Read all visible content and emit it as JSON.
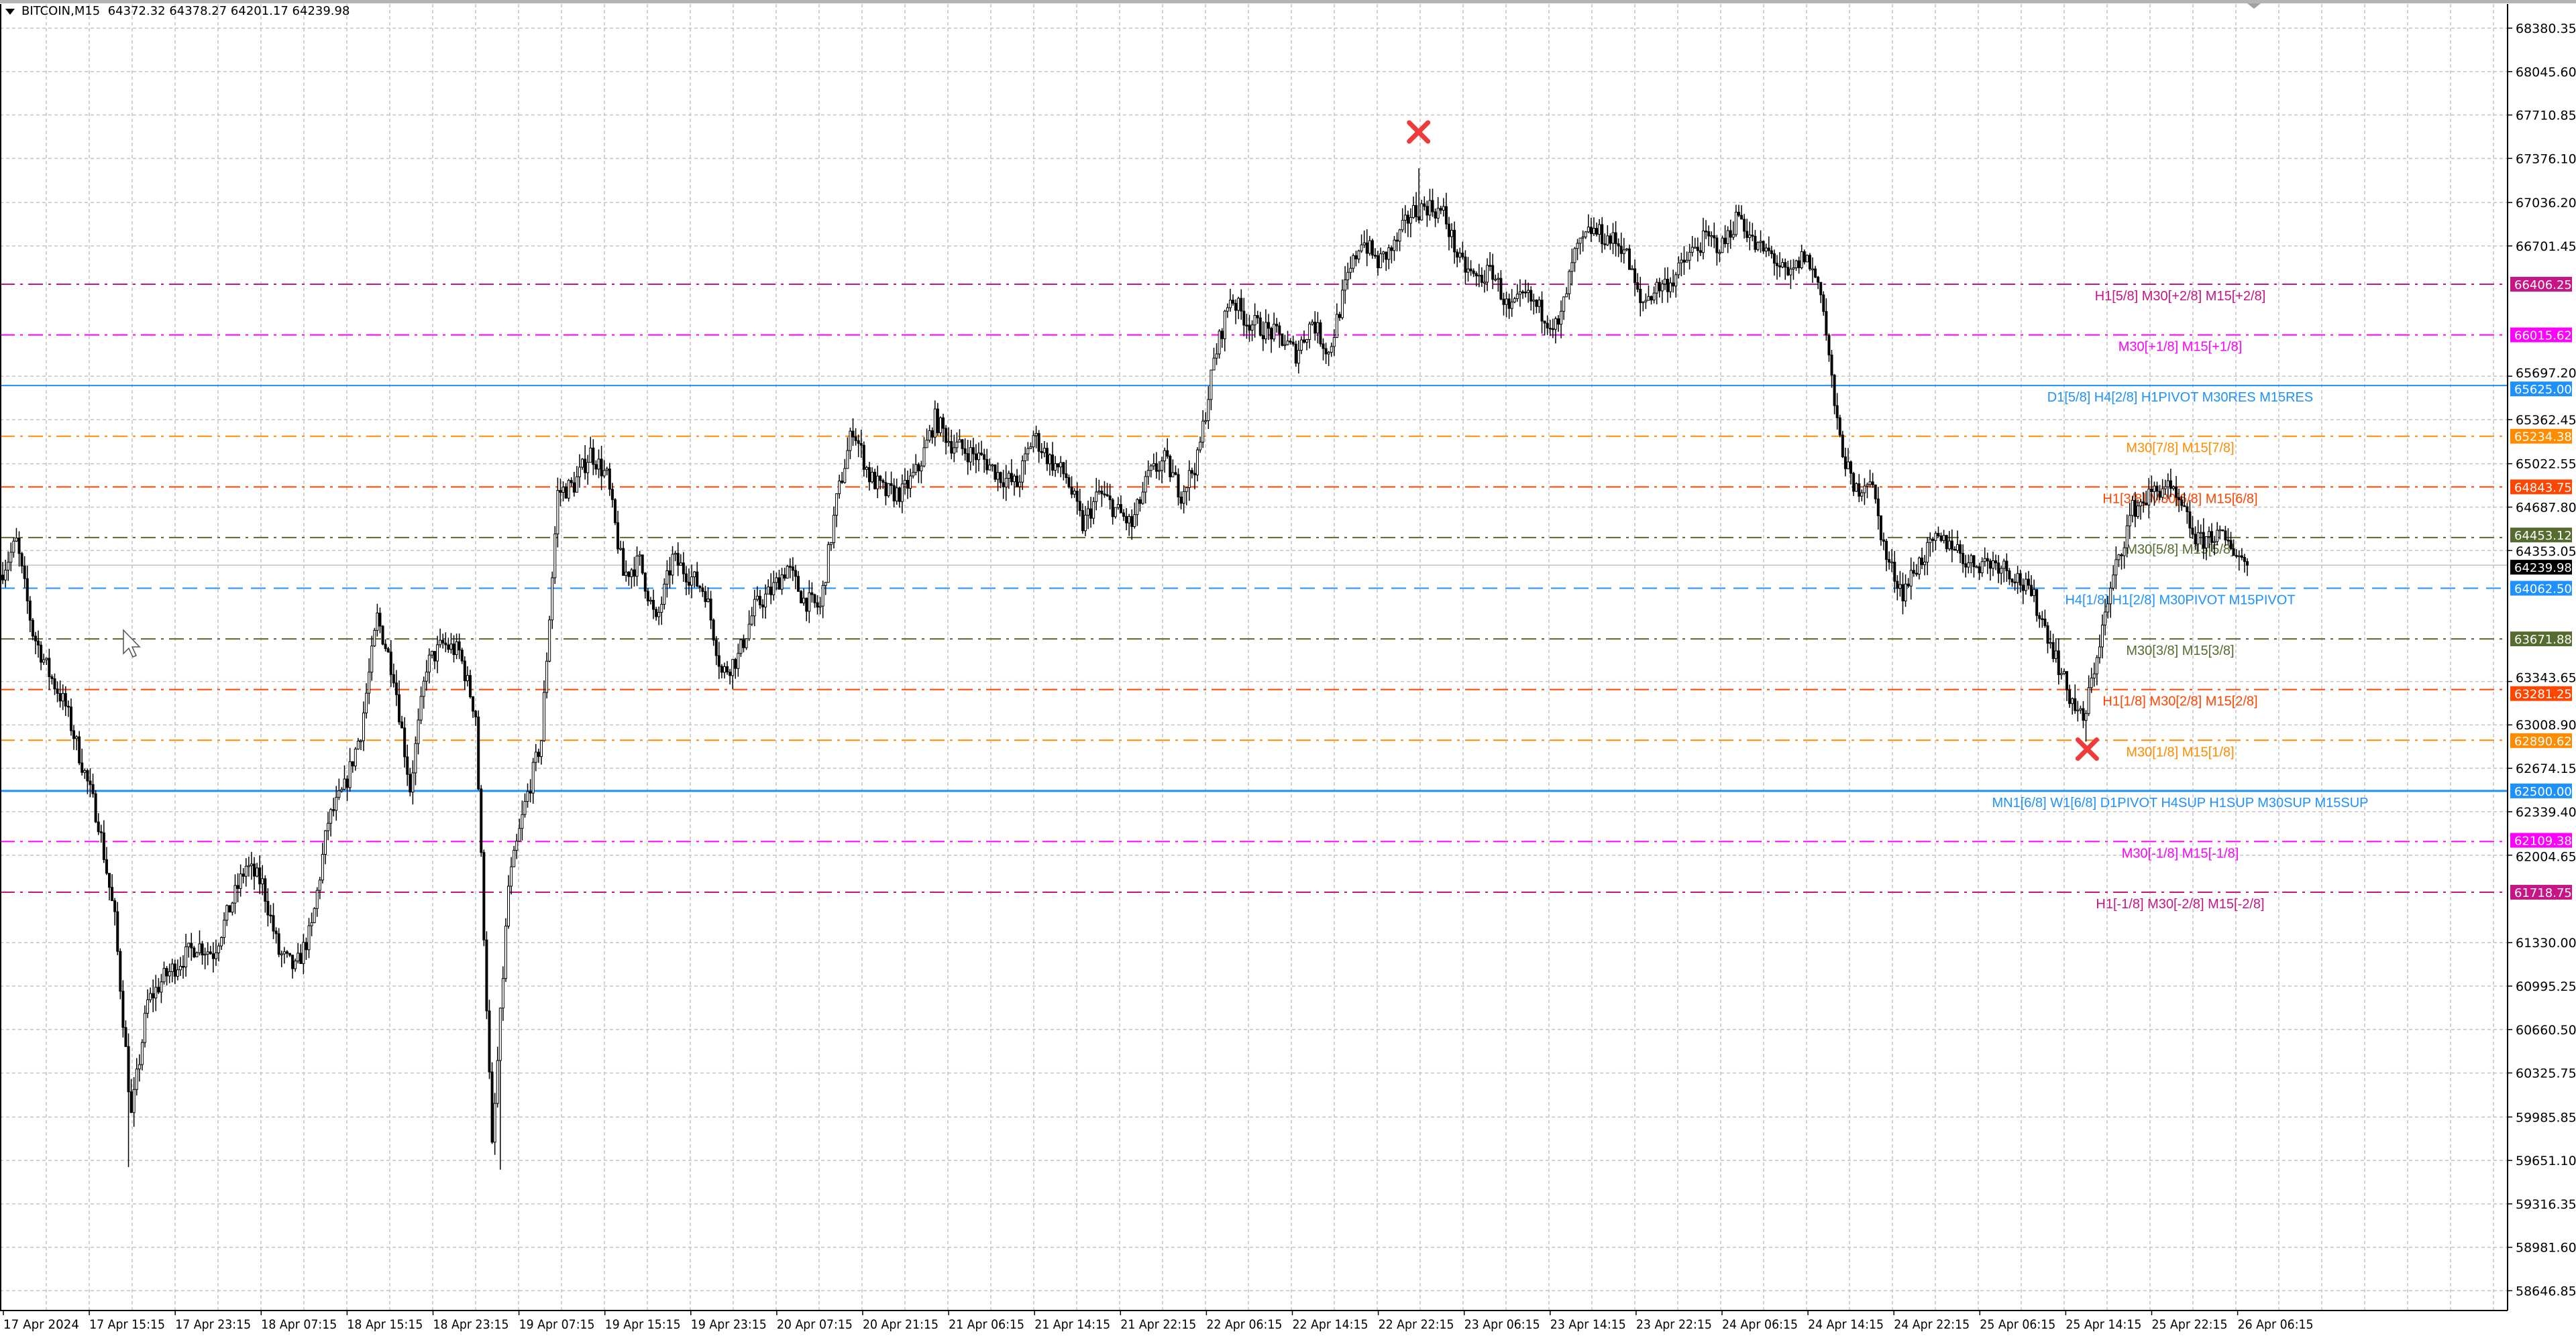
{
  "header": {
    "symbol": "BITCOIN,M15",
    "ohlc": "64372.32 64378.27 64201.17 64239.98"
  },
  "chart_data": {
    "type": "candlestick",
    "symbol": "BITCOIN",
    "timeframe": "M15",
    "grid": true,
    "colors": {
      "candle": "#000000",
      "bull_body": "#ffffff",
      "bear_body": "#000000",
      "grid": "#c0c0c0",
      "current_price_line": "#c0c0c0"
    },
    "price_axis_labels": [
      "68380.35",
      "68045.60",
      "67710.85",
      "67376.10",
      "67036.20",
      "66701.45",
      "65697.20",
      "65362.45",
      "65022.55",
      "64687.80",
      "64353.05",
      "63343.65",
      "63008.90",
      "62674.15",
      "62339.40",
      "62004.65",
      "61330.00",
      "60995.25",
      "60660.50",
      "60325.75",
      "59985.85",
      "59651.10",
      "59316.35",
      "58981.60",
      "58646.85"
    ],
    "ylim": [
      58600,
      68450
    ],
    "time_axis_labels": [
      "17 Apr 2024",
      "17 Apr 15:15",
      "17 Apr 23:15",
      "18 Apr 07:15",
      "18 Apr 15:15",
      "18 Apr 23:15",
      "19 Apr 07:15",
      "19 Apr 15:15",
      "19 Apr 23:15",
      "20 Apr 07:15",
      "20 Apr 21:15",
      "21 Apr 06:15",
      "21 Apr 14:15",
      "21 Apr 22:15",
      "22 Apr 06:15",
      "22 Apr 14:15",
      "22 Apr 22:15",
      "23 Apr 06:15",
      "23 Apr 14:15",
      "23 Apr 22:15",
      "24 Apr 06:15",
      "24 Apr 14:15",
      "24 Apr 22:15",
      "25 Apr 06:15",
      "25 Apr 14:15",
      "25 Apr 22:15",
      "26 Apr 06:15"
    ],
    "approx_close_path": [
      64164,
      64417,
      63720,
      63405,
      63151,
      62710,
      62265,
      61505,
      59990,
      60870,
      61060,
      61190,
      61315,
      61250,
      61595,
      61920,
      61785,
      61250,
      61125,
      61440,
      62265,
      62520,
      62960,
      63835,
      63405,
      62520,
      63470,
      63630,
      63570,
      63090,
      59733,
      61760,
      62390,
      62898,
      64797,
      64860,
      65110,
      64920,
      64164,
      64265,
      63785,
      64290,
      64164,
      64037,
      63405,
      63531,
      63910,
      64037,
      64227,
      63974,
      63910,
      64735,
      65303,
      64924,
      64797,
      64797,
      64987,
      65367,
      65177,
      65114,
      65050,
      64924,
      64860,
      65240,
      65050,
      64924,
      64545,
      64797,
      64670,
      64545,
      64924,
      65050,
      64797,
      65050,
      65810,
      66316,
      66126,
      66063,
      66000,
      65873,
      66126,
      65873,
      66380,
      66760,
      66570,
      66696,
      66950,
      67013,
      66950,
      66570,
      66443,
      66506,
      66190,
      66316,
      66190,
      66063,
      66633,
      66823,
      66760,
      66696,
      66253,
      66380,
      66443,
      66633,
      66760,
      66696,
      66950,
      66696,
      66633,
      66443,
      66633,
      66380,
      65303,
      64797,
      64924,
      64290,
      64037,
      64265,
      64417,
      64417,
      64253,
      64265,
      64253,
      64139,
      63974,
      63658,
      63278,
      63025,
      63658,
      64227,
      64670,
      64772,
      64860,
      64670,
      64417,
      64480,
      64392,
      64239.98
    ],
    "wick_extremes": [
      {
        "kind": "high",
        "price": 67300,
        "time": "23 Apr 02:00"
      },
      {
        "kind": "low",
        "price": 59600,
        "time": "17 Apr 19:00"
      },
      {
        "kind": "low",
        "price": 59580,
        "time": "19 Apr 05:30"
      },
      {
        "kind": "low",
        "price": 62880,
        "time": "25 Apr 16:15"
      }
    ],
    "markers": [
      {
        "icon": "red-x-icon",
        "price": 67580,
        "time": "23 Apr 02:00",
        "color": "#ee3b3b"
      },
      {
        "icon": "red-x-icon",
        "price": 62822,
        "time": "25 Apr 16:15",
        "color": "#ee3b3b"
      }
    ],
    "current_price": {
      "value": "64239.98",
      "price": 64239.98,
      "color": "#000000"
    },
    "levels": [
      {
        "price": 66406.25,
        "tag": "66406.25",
        "label": "H1[5/8] M30[+2/8] M15[+2/8]",
        "color": "#c71585",
        "style": "dashdot"
      },
      {
        "price": 66015.62,
        "tag": "66015.62",
        "label": "M30[+1/8] M15[+1/8]",
        "color": "#ff00ff",
        "style": "dashdot"
      },
      {
        "price": 65625.0,
        "tag": "65625.00",
        "label": "D1[5/8] H4[2/8] H1PIVOT M30RES M15RES",
        "color": "#1e90ff",
        "style": "solid"
      },
      {
        "price": 65234.38,
        "tag": "65234.38",
        "label": "M30[7/8] M15[7/8]",
        "color": "#ff8c00",
        "style": "dashdot"
      },
      {
        "price": 64843.75,
        "tag": "64843.75",
        "label": "H1[3/8] M30[6/8] M15[6/8]",
        "color": "#ff4500",
        "style": "dashdot"
      },
      {
        "price": 64453.12,
        "tag": "64453.12",
        "label": "M30[5/8] M15[5/8]",
        "color": "#556b2f",
        "style": "dashdot"
      },
      {
        "price": 64062.5,
        "tag": "64062.50",
        "label": "H4[1/8] H1[2/8] M30PIVOT M15PIVOT",
        "color": "#1e90ff",
        "style": "dashed"
      },
      {
        "price": 63671.88,
        "tag": "63671.88",
        "label": "M30[3/8] M15[3/8]",
        "color": "#556b2f",
        "style": "dashdot"
      },
      {
        "price": 63281.25,
        "tag": "63281.25",
        "label": "H1[1/8] M30[2/8] M15[2/8]",
        "color": "#ff4500",
        "style": "dashdot"
      },
      {
        "price": 62890.62,
        "tag": "62890.62",
        "label": "M30[1/8] M15[1/8]",
        "color": "#ff8c00",
        "style": "dashdot"
      },
      {
        "price": 62500.0,
        "tag": "62500.00",
        "label": "MN1[6/8] W1[6/8] D1PIVOT H4SUP H1SUP M30SUP M15SUP",
        "color": "#1e90ff",
        "style": "solid-thick"
      },
      {
        "price": 62109.38,
        "tag": "62109.38",
        "label": "M30[-1/8] M15[-1/8]",
        "color": "#ff00ff",
        "style": "dashdot"
      },
      {
        "price": 61718.75,
        "tag": "61718.75",
        "label": "H1[-1/8] M30[-2/8] M15[-2/8]",
        "color": "#c71585",
        "style": "dashdot"
      }
    ]
  }
}
